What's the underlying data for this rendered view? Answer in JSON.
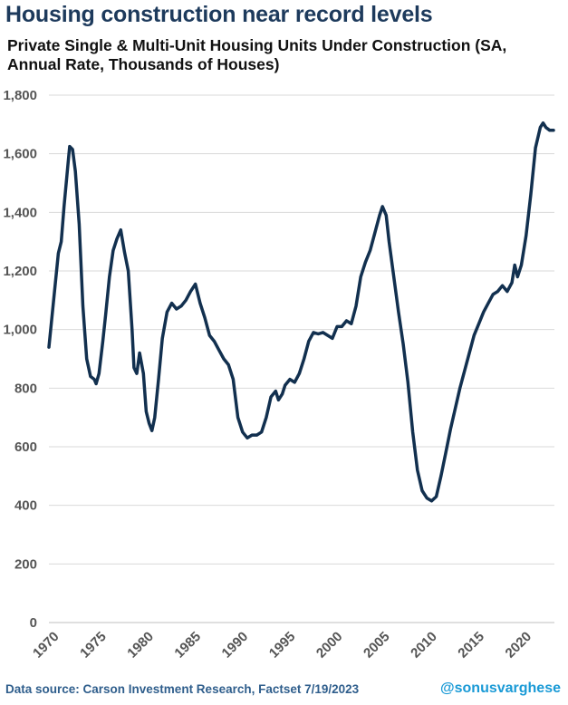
{
  "header": {
    "title": "Housing construction near record levels",
    "subtitle": "Private Single & Multi-Unit Housing Units Under Construction (SA, Annual Rate, Thousands of Houses)"
  },
  "footer": {
    "source": "Data source: Carson Investment Research, Factset   7/19/2023",
    "handle": "@sonusvarghese"
  },
  "colors": {
    "line": "#12304f",
    "grid": "#d9d9d9",
    "title": "#1d3a5c",
    "handle": "#1a9ad6"
  },
  "chart_data": {
    "type": "line",
    "title": "Housing construction near record levels",
    "subtitle": "Private Single & Multi-Unit Housing Units Under Construction (SA, Annual Rate, Thousands of Houses)",
    "xlabel": "",
    "ylabel": "",
    "xlim": [
      1970,
      2023.5
    ],
    "ylim": [
      0,
      1800
    ],
    "y_ticks": [
      0,
      200,
      400,
      600,
      800,
      1000,
      1200,
      1400,
      1600,
      1800
    ],
    "y_tick_labels": [
      "0",
      "200",
      "400",
      "600",
      "800",
      "1,000",
      "1,200",
      "1,400",
      "1,600",
      "1,800"
    ],
    "x_ticks": [
      1970,
      1975,
      1980,
      1985,
      1990,
      1995,
      2000,
      2005,
      2010,
      2015,
      2020
    ],
    "x_tick_labels": [
      "1970",
      "1975",
      "1980",
      "1985",
      "1990",
      "1995",
      "2000",
      "2005",
      "2010",
      "2015",
      "2020"
    ],
    "grid": true,
    "series": [
      {
        "points": [
          [
            1970.0,
            940
          ],
          [
            1970.5,
            1100
          ],
          [
            1971.0,
            1260
          ],
          [
            1971.3,
            1300
          ],
          [
            1971.6,
            1420
          ],
          [
            1972.0,
            1560
          ],
          [
            1972.2,
            1625
          ],
          [
            1972.5,
            1615
          ],
          [
            1972.8,
            1540
          ],
          [
            1973.2,
            1360
          ],
          [
            1973.6,
            1080
          ],
          [
            1974.0,
            900
          ],
          [
            1974.4,
            840
          ],
          [
            1974.8,
            830
          ],
          [
            1975.0,
            815
          ],
          [
            1975.3,
            850
          ],
          [
            1975.7,
            960
          ],
          [
            1976.0,
            1050
          ],
          [
            1976.4,
            1180
          ],
          [
            1976.8,
            1270
          ],
          [
            1977.2,
            1310
          ],
          [
            1977.6,
            1340
          ],
          [
            1978.0,
            1265
          ],
          [
            1978.4,
            1200
          ],
          [
            1978.8,
            1000
          ],
          [
            1979.0,
            870
          ],
          [
            1979.3,
            850
          ],
          [
            1979.6,
            920
          ],
          [
            1980.0,
            850
          ],
          [
            1980.3,
            720
          ],
          [
            1980.6,
            680
          ],
          [
            1980.9,
            655
          ],
          [
            1981.2,
            700
          ],
          [
            1981.6,
            830
          ],
          [
            1982.0,
            970
          ],
          [
            1982.5,
            1060
          ],
          [
            1983.0,
            1090
          ],
          [
            1983.5,
            1070
          ],
          [
            1984.0,
            1080
          ],
          [
            1984.5,
            1100
          ],
          [
            1985.0,
            1130
          ],
          [
            1985.5,
            1155
          ],
          [
            1986.0,
            1090
          ],
          [
            1986.5,
            1040
          ],
          [
            1987.0,
            980
          ],
          [
            1987.5,
            960
          ],
          [
            1988.0,
            930
          ],
          [
            1988.5,
            900
          ],
          [
            1989.0,
            880
          ],
          [
            1989.5,
            830
          ],
          [
            1990.0,
            700
          ],
          [
            1990.5,
            650
          ],
          [
            1991.0,
            630
          ],
          [
            1991.5,
            640
          ],
          [
            1992.0,
            640
          ],
          [
            1992.5,
            650
          ],
          [
            1993.0,
            700
          ],
          [
            1993.5,
            770
          ],
          [
            1994.0,
            790
          ],
          [
            1994.3,
            760
          ],
          [
            1994.7,
            780
          ],
          [
            1995.0,
            810
          ],
          [
            1995.5,
            830
          ],
          [
            1996.0,
            820
          ],
          [
            1996.5,
            850
          ],
          [
            1997.0,
            900
          ],
          [
            1997.5,
            960
          ],
          [
            1998.0,
            990
          ],
          [
            1998.5,
            985
          ],
          [
            1999.0,
            990
          ],
          [
            1999.5,
            980
          ],
          [
            2000.0,
            970
          ],
          [
            2000.5,
            1010
          ],
          [
            2001.0,
            1010
          ],
          [
            2001.5,
            1030
          ],
          [
            2002.0,
            1020
          ],
          [
            2002.5,
            1080
          ],
          [
            2003.0,
            1180
          ],
          [
            2003.5,
            1230
          ],
          [
            2004.0,
            1270
          ],
          [
            2004.5,
            1330
          ],
          [
            2005.0,
            1390
          ],
          [
            2005.3,
            1420
          ],
          [
            2005.7,
            1390
          ],
          [
            2006.0,
            1300
          ],
          [
            2006.5,
            1180
          ],
          [
            2007.0,
            1060
          ],
          [
            2007.5,
            950
          ],
          [
            2008.0,
            820
          ],
          [
            2008.5,
            650
          ],
          [
            2009.0,
            520
          ],
          [
            2009.5,
            450
          ],
          [
            2010.0,
            425
          ],
          [
            2010.5,
            415
          ],
          [
            2011.0,
            430
          ],
          [
            2011.5,
            500
          ],
          [
            2012.0,
            580
          ],
          [
            2012.5,
            660
          ],
          [
            2013.0,
            730
          ],
          [
            2013.5,
            800
          ],
          [
            2014.0,
            860
          ],
          [
            2014.5,
            920
          ],
          [
            2015.0,
            980
          ],
          [
            2015.5,
            1020
          ],
          [
            2016.0,
            1060
          ],
          [
            2016.5,
            1090
          ],
          [
            2017.0,
            1120
          ],
          [
            2017.5,
            1130
          ],
          [
            2018.0,
            1150
          ],
          [
            2018.5,
            1130
          ],
          [
            2019.0,
            1160
          ],
          [
            2019.3,
            1220
          ],
          [
            2019.6,
            1180
          ],
          [
            2020.0,
            1220
          ],
          [
            2020.5,
            1320
          ],
          [
            2021.0,
            1460
          ],
          [
            2021.5,
            1620
          ],
          [
            2022.0,
            1690
          ],
          [
            2022.3,
            1705
          ],
          [
            2022.6,
            1690
          ],
          [
            2023.0,
            1680
          ],
          [
            2023.4,
            1680
          ]
        ]
      }
    ]
  }
}
